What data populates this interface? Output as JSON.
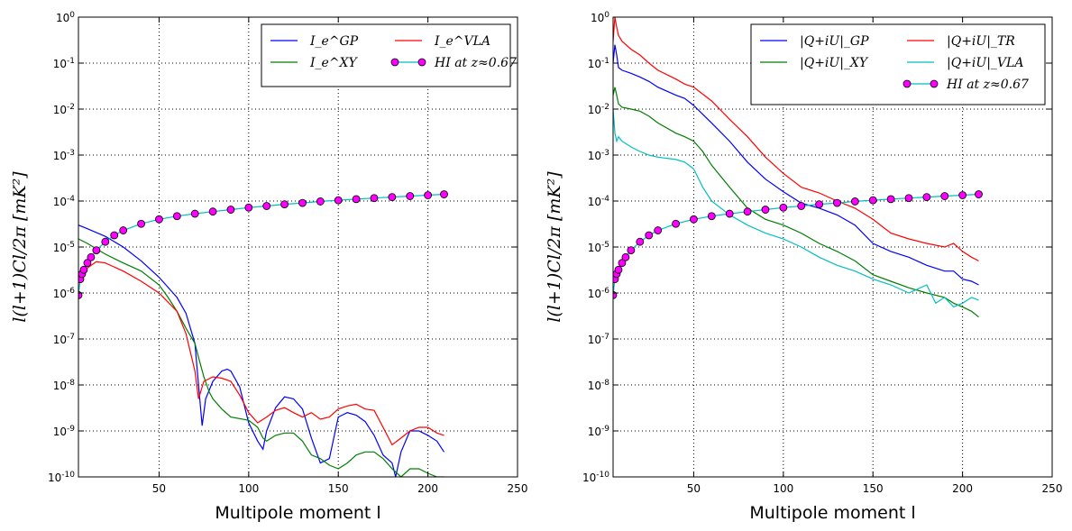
{
  "chart_data": [
    {
      "type": "line",
      "xlabel": "Multipole moment l",
      "ylabel": "l(l+1)Cl/2π [mK²]",
      "xlim": [
        5,
        250
      ],
      "ylim": [
        1e-10,
        1
      ],
      "yscale": "log",
      "grid": true,
      "legend": "top-right",
      "legend_columns": 2,
      "xticks": [
        {
          "value": 50,
          "label": "50"
        },
        {
          "value": 100,
          "label": "100"
        },
        {
          "value": 150,
          "label": "150"
        },
        {
          "value": 200,
          "label": "200"
        },
        {
          "value": 250,
          "label": "250"
        }
      ],
      "yticks": [
        {
          "exp": 0,
          "base": "10",
          "sup": "0"
        },
        {
          "exp": -1,
          "base": "10",
          "sup": "-1"
        },
        {
          "exp": -2,
          "base": "10",
          "sup": "-2"
        },
        {
          "exp": -3,
          "base": "10",
          "sup": "-3"
        },
        {
          "exp": -4,
          "base": "10",
          "sup": "-4"
        },
        {
          "exp": -5,
          "base": "10",
          "sup": "-5"
        },
        {
          "exp": -6,
          "base": "10",
          "sup": "-6"
        },
        {
          "exp": -7,
          "base": "10",
          "sup": "-7"
        },
        {
          "exp": -8,
          "base": "10",
          "sup": "-8"
        },
        {
          "exp": -9,
          "base": "10",
          "sup": "-9"
        },
        {
          "exp": -10,
          "base": "10",
          "sup": "-10"
        }
      ],
      "series": [
        {
          "name": "I_e^GP",
          "color": "#0000ff",
          "style": "line",
          "x": [
            5,
            10,
            20,
            30,
            40,
            50,
            60,
            65,
            70,
            72,
            74,
            76,
            80,
            85,
            88,
            90,
            95,
            100,
            105,
            108,
            110,
            115,
            120,
            125,
            130,
            135,
            140,
            145,
            150,
            155,
            160,
            165,
            170,
            175,
            180,
            182,
            185,
            190,
            195,
            200,
            205,
            209
          ],
          "y": [
            3e-05,
            2.5e-05,
            1.7e-05,
            1e-05,
            5e-06,
            2.2e-06,
            8e-07,
            3.6e-07,
            8e-08,
            1e-08,
            1.3e-09,
            5e-09,
            1.2e-08,
            2e-08,
            2.2e-08,
            2e-08,
            9e-09,
            1.5e-09,
            6e-10,
            4e-10,
            1e-09,
            3.2e-09,
            5.5e-09,
            5e-09,
            3e-09,
            7e-10,
            2e-10,
            2.5e-10,
            2e-09,
            2.5e-09,
            2.2e-09,
            1.6e-09,
            8e-10,
            3e-10,
            2e-10,
            1e-10,
            3.5e-10,
            1e-09,
            1e-09,
            8e-10,
            6e-10,
            3.5e-10
          ]
        },
        {
          "name": "I_e^XY",
          "color": "#007f00",
          "style": "line",
          "x": [
            5,
            10,
            20,
            30,
            40,
            50,
            55,
            60,
            65,
            70,
            72,
            75,
            78,
            80,
            85,
            90,
            100,
            105,
            108,
            110,
            115,
            120,
            125,
            130,
            135,
            140,
            145,
            150,
            155,
            160,
            165,
            170,
            175,
            180,
            185,
            190,
            195,
            200,
            205,
            209
          ],
          "y": [
            1.5e-05,
            1.2e-05,
            7e-06,
            4.5e-06,
            3e-06,
            1.5e-06,
            8e-07,
            4e-07,
            1.7e-07,
            8e-08,
            4e-08,
            1.5e-08,
            7e-09,
            5e-09,
            3e-09,
            2e-09,
            1.7e-09,
            1.2e-09,
            7e-10,
            6e-10,
            8e-10,
            9e-10,
            9e-10,
            6e-10,
            3e-10,
            2.5e-10,
            1.8e-10,
            1.5e-10,
            2e-10,
            3e-10,
            3.5e-10,
            3.5e-10,
            2.5e-10,
            1.5e-10,
            1e-10,
            1.5e-10,
            1.5e-10,
            1.2e-10,
            1e-10,
            1e-10
          ]
        },
        {
          "name": "I_e^VLA",
          "color": "#ff0000",
          "style": "line",
          "x": [
            5,
            10,
            15,
            20,
            30,
            40,
            50,
            60,
            65,
            70,
            72,
            75,
            80,
            85,
            90,
            95,
            100,
            105,
            110,
            115,
            120,
            125,
            130,
            135,
            140,
            145,
            150,
            155,
            160,
            165,
            170,
            175,
            180,
            185,
            190,
            195,
            200,
            205,
            209
          ],
          "y": [
            2e-06,
            3.5e-06,
            4.8e-06,
            4.5e-06,
            3e-06,
            1.8e-06,
            1e-06,
            4e-07,
            1.3e-07,
            2e-08,
            5e-09,
            1.2e-08,
            1.5e-08,
            1.4e-08,
            1.2e-08,
            6e-09,
            2.5e-09,
            1.5e-09,
            2e-09,
            2.8e-09,
            3.2e-09,
            2.5e-09,
            2e-09,
            2.5e-09,
            1.8e-09,
            2e-09,
            3e-09,
            3.5e-09,
            3.8e-09,
            3e-09,
            2.8e-09,
            1.2e-09,
            5e-10,
            7e-10,
            1e-09,
            1.2e-09,
            1.2e-09,
            9e-10,
            8e-10
          ]
        },
        {
          "name": "HI at z≈0.67",
          "color": "#ff00ff",
          "style": "markers",
          "line_color": "#00bfbf",
          "x": [
            5,
            6,
            7,
            8,
            10,
            12,
            15,
            20,
            25,
            30,
            40,
            50,
            60,
            70,
            80,
            90,
            100,
            110,
            120,
            130,
            140,
            150,
            160,
            170,
            180,
            190,
            200,
            209
          ],
          "y": [
            9e-07,
            2e-06,
            2.6e-06,
            3.2e-06,
            4.5e-06,
            6e-06,
            8.5e-06,
            1.3e-05,
            1.8e-05,
            2.3e-05,
            3.2e-05,
            4e-05,
            4.7e-05,
            5.3e-05,
            5.9e-05,
            6.5e-05,
            7.2e-05,
            7.8e-05,
            8.5e-05,
            9.1e-05,
            9.8e-05,
            0.000104,
            0.00011,
            0.000116,
            0.000122,
            0.000128,
            0.000134,
            0.00014
          ]
        }
      ]
    },
    {
      "type": "line",
      "xlabel": "Multipole moment l",
      "ylabel": "l(l+1)Cl/2π [mK²]",
      "xlim": [
        5,
        250
      ],
      "ylim": [
        1e-10,
        1
      ],
      "yscale": "log",
      "grid": true,
      "legend": "top-right",
      "legend_columns": 2,
      "xticks": [
        {
          "value": 50,
          "label": "50"
        },
        {
          "value": 100,
          "label": "100"
        },
        {
          "value": 150,
          "label": "150"
        },
        {
          "value": 200,
          "label": "200"
        },
        {
          "value": 250,
          "label": "250"
        }
      ],
      "yticks": [
        {
          "exp": 0,
          "base": "10",
          "sup": "0"
        },
        {
          "exp": -1,
          "base": "10",
          "sup": "-1"
        },
        {
          "exp": -2,
          "base": "10",
          "sup": "-2"
        },
        {
          "exp": -3,
          "base": "10",
          "sup": "-3"
        },
        {
          "exp": -4,
          "base": "10",
          "sup": "-4"
        },
        {
          "exp": -5,
          "base": "10",
          "sup": "-5"
        },
        {
          "exp": -6,
          "base": "10",
          "sup": "-6"
        },
        {
          "exp": -7,
          "base": "10",
          "sup": "-7"
        },
        {
          "exp": -8,
          "base": "10",
          "sup": "-8"
        },
        {
          "exp": -9,
          "base": "10",
          "sup": "-9"
        },
        {
          "exp": -10,
          "base": "10",
          "sup": "-10"
        }
      ],
      "series": [
        {
          "name": "|Q+iU|_GP",
          "color": "#0000ff",
          "style": "line",
          "x": [
            5,
            6,
            7,
            8,
            10,
            15,
            20,
            25,
            30,
            40,
            45,
            50,
            60,
            70,
            80,
            90,
            100,
            110,
            120,
            130,
            140,
            150,
            160,
            170,
            180,
            190,
            195,
            200,
            205,
            209
          ],
          "y": [
            0.1,
            0.25,
            0.15,
            0.08,
            0.07,
            0.06,
            0.05,
            0.04,
            0.03,
            0.02,
            0.017,
            0.012,
            0.005,
            0.002,
            0.0007,
            0.0003,
            0.00016,
            9e-05,
            7e-05,
            5e-05,
            3e-05,
            1.2e-05,
            8e-06,
            6e-06,
            4e-06,
            3e-06,
            3e-06,
            2e-06,
            1.8e-06,
            1.5e-06
          ]
        },
        {
          "name": "|Q+iU|_XY",
          "color": "#007f00",
          "style": "line",
          "x": [
            5,
            6,
            7,
            8,
            10,
            15,
            20,
            25,
            30,
            40,
            45,
            50,
            55,
            60,
            70,
            80,
            90,
            100,
            110,
            120,
            130,
            140,
            150,
            160,
            170,
            180,
            190,
            195,
            200,
            205,
            209
          ],
          "y": [
            0.02,
            0.03,
            0.02,
            0.013,
            0.011,
            0.01,
            0.009,
            0.007,
            0.005,
            0.003,
            0.0025,
            0.002,
            0.0012,
            0.0006,
            0.0002,
            7e-05,
            4e-05,
            3e-05,
            2e-05,
            1.2e-05,
            8e-06,
            5e-06,
            2.5e-06,
            1.8e-06,
            1.3e-06,
            1e-06,
            8e-07,
            6e-07,
            5e-07,
            4e-07,
            3e-07
          ]
        },
        {
          "name": "|Q+iU|_TR",
          "color": "#ff0000",
          "style": "line",
          "x": [
            5,
            6,
            7,
            8,
            10,
            15,
            20,
            25,
            30,
            40,
            45,
            50,
            60,
            70,
            80,
            90,
            100,
            110,
            120,
            130,
            140,
            150,
            160,
            170,
            180,
            190,
            195,
            200,
            205,
            209
          ],
          "y": [
            0.3,
            1.0,
            0.6,
            0.4,
            0.3,
            0.2,
            0.15,
            0.1,
            0.07,
            0.045,
            0.035,
            0.03,
            0.015,
            0.006,
            0.0025,
            0.0009,
            0.0004,
            0.0002,
            0.00015,
            0.0001,
            7e-05,
            4e-05,
            2e-05,
            1.5e-05,
            1.2e-05,
            1e-05,
            1.2e-05,
            8e-06,
            6e-06,
            5e-06
          ]
        },
        {
          "name": "|Q+iU|_VLA",
          "color": "#00bfbf",
          "style": "line",
          "x": [
            5,
            6,
            7,
            8,
            10,
            15,
            20,
            25,
            30,
            40,
            45,
            50,
            55,
            60,
            70,
            80,
            90,
            100,
            110,
            120,
            130,
            140,
            150,
            160,
            170,
            180,
            185,
            190,
            195,
            200,
            205,
            209
          ],
          "y": [
            0.01,
            0.003,
            0.002,
            0.0025,
            0.002,
            0.0015,
            0.0012,
            0.001,
            0.0009,
            0.0008,
            0.0007,
            0.0005,
            0.0002,
            0.0001,
            5e-05,
            3e-05,
            2e-05,
            1.5e-05,
            1e-05,
            6e-06,
            4e-06,
            3e-06,
            2e-06,
            1.5e-06,
            1e-06,
            1.5e-06,
            6e-07,
            8e-07,
            5e-07,
            6e-07,
            8e-07,
            7e-07
          ]
        },
        {
          "name": "HI at z≈0.67",
          "color": "#ff00ff",
          "style": "markers",
          "line_color": "#00bfbf",
          "x": [
            5,
            6,
            7,
            8,
            10,
            12,
            15,
            20,
            25,
            30,
            40,
            50,
            60,
            70,
            80,
            90,
            100,
            110,
            120,
            130,
            140,
            150,
            160,
            170,
            180,
            190,
            200,
            209
          ],
          "y": [
            9e-07,
            2e-06,
            2.6e-06,
            3.2e-06,
            4.5e-06,
            6e-06,
            8.5e-06,
            1.3e-05,
            1.8e-05,
            2.3e-05,
            3.2e-05,
            4e-05,
            4.7e-05,
            5.3e-05,
            5.9e-05,
            6.5e-05,
            7.2e-05,
            7.8e-05,
            8.5e-05,
            9.1e-05,
            9.8e-05,
            0.000104,
            0.00011,
            0.000116,
            0.000122,
            0.000128,
            0.000134,
            0.00014
          ]
        }
      ]
    }
  ]
}
